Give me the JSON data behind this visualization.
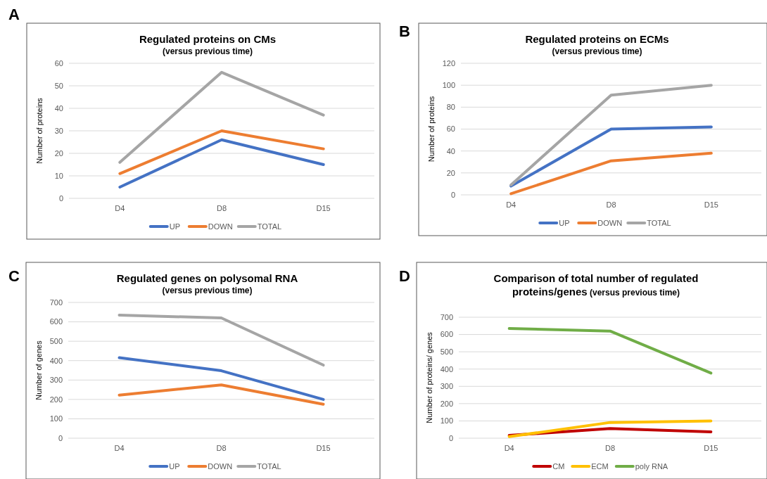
{
  "chart_data": [
    {
      "type": "line",
      "title": "Regulated proteins on CMs",
      "subtitle": "(versus previous time)",
      "ylabel": "Number of proteins",
      "categories": [
        "D4",
        "D8",
        "D15"
      ],
      "ylim": [
        0,
        60
      ],
      "yticks": [
        0,
        10,
        20,
        30,
        40,
        50,
        60
      ],
      "grid": "y",
      "legend": "bottom",
      "annotations": [
        "A"
      ],
      "series": [
        {
          "name": "UP",
          "color": "#4472c4",
          "values": [
            5,
            26,
            15
          ]
        },
        {
          "name": "DOWN",
          "color": "#ed7d31",
          "values": [
            11,
            30,
            22
          ]
        },
        {
          "name": "TOTAL",
          "color": "#a5a5a5",
          "values": [
            16,
            56,
            37
          ]
        }
      ]
    },
    {
      "type": "line",
      "title": "Regulated proteins on ECMs",
      "subtitle": "(versus previous time)",
      "ylabel": "Number of proteins",
      "categories": [
        "D4",
        "D8",
        "D15"
      ],
      "ylim": [
        0,
        120
      ],
      "yticks": [
        0,
        20,
        40,
        60,
        80,
        100,
        120
      ],
      "grid": "y",
      "legend": "bottom",
      "annotations": [
        "B"
      ],
      "series": [
        {
          "name": "UP",
          "color": "#4472c4",
          "values": [
            8,
            60,
            62
          ]
        },
        {
          "name": "DOWN",
          "color": "#ed7d31",
          "values": [
            1,
            31,
            38
          ]
        },
        {
          "name": "TOTAL",
          "color": "#a5a5a5",
          "values": [
            9,
            91,
            100
          ]
        }
      ]
    },
    {
      "type": "line",
      "title": "Regulated genes on polysomal RNA",
      "subtitle": "(versus previous time)",
      "ylabel": "Number of genes",
      "categories": [
        "D4",
        "D8",
        "D15"
      ],
      "ylim": [
        0,
        700
      ],
      "yticks": [
        0,
        100,
        200,
        300,
        400,
        500,
        600,
        700
      ],
      "grid": "y",
      "legend": "bottom",
      "annotations": [
        "C"
      ],
      "series": [
        {
          "name": "UP",
          "color": "#4472c4",
          "values": [
            415,
            348,
            200
          ]
        },
        {
          "name": "DOWN",
          "color": "#ed7d31",
          "values": [
            222,
            275,
            175
          ]
        },
        {
          "name": "TOTAL",
          "color": "#a5a5a5",
          "values": [
            635,
            620,
            377
          ]
        }
      ]
    },
    {
      "type": "line",
      "title": "Comparison of total number of regulated proteins/genes",
      "subtitle": "(versus previous time)",
      "ylabel": "Number of proteins/ genes",
      "categories": [
        "D4",
        "D8",
        "D15"
      ],
      "ylim": [
        0,
        700
      ],
      "yticks": [
        0,
        100,
        200,
        300,
        400,
        500,
        600,
        700
      ],
      "grid": "y",
      "legend": "bottom",
      "annotations": [
        "D"
      ],
      "series": [
        {
          "name": "CM",
          "color": "#c00000",
          "values": [
            16,
            56,
            37
          ]
        },
        {
          "name": "ECM",
          "color": "#ffc000",
          "values": [
            9,
            91,
            100
          ]
        },
        {
          "name": "poly RNA",
          "color": "#70ad47",
          "values": [
            635,
            620,
            377
          ]
        }
      ]
    }
  ]
}
